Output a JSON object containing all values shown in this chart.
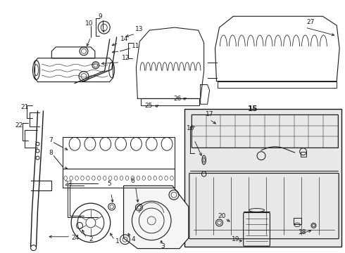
{
  "bg_color": "#ffffff",
  "line_color": "#1a1a1a",
  "figsize": [
    4.9,
    3.6
  ],
  "dpi": 100,
  "box_color": "#e8e8e8",
  "fs": 6.0
}
